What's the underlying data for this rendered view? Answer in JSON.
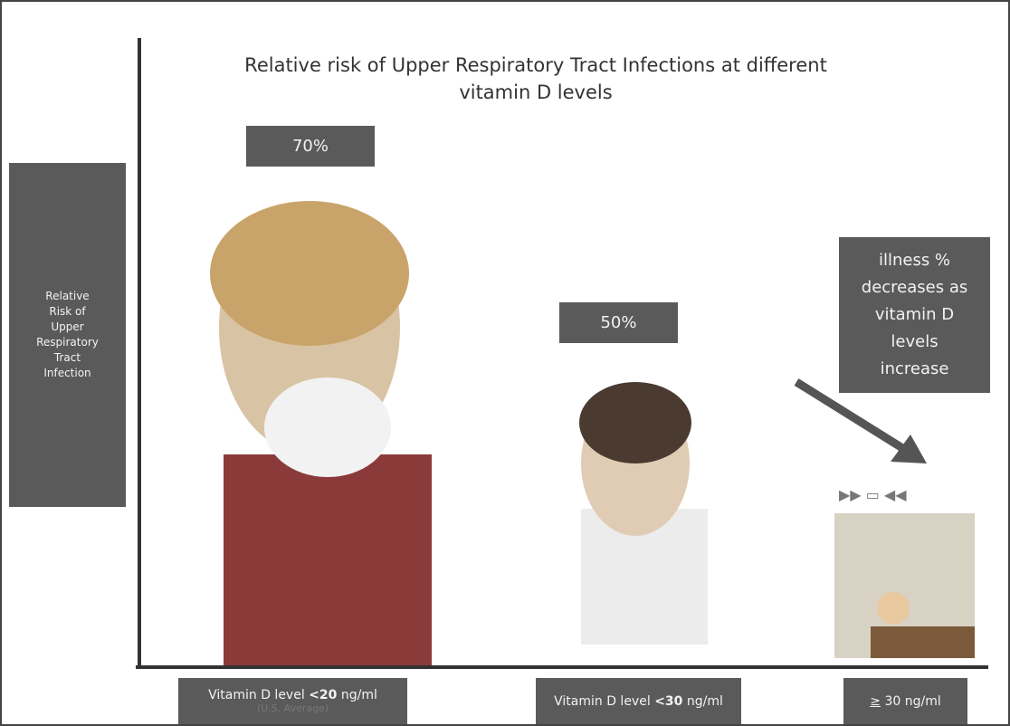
{
  "title": [
    "Relative risk of Upper Respiratory Tract Infections at different",
    "vitamin D levels"
  ],
  "y_label": [
    "Relative",
    "Risk of",
    "Upper",
    "Respiratory",
    "Tract",
    "Infection"
  ],
  "groups": [
    {
      "value_label": "70%",
      "label": [
        "Vitamin D level ",
        "<20",
        " ng/ml"
      ],
      "note": "(U.S. Average)"
    },
    {
      "value_label": "50%",
      "label": [
        "Vitamin D level ",
        "<30",
        " ng/ml"
      ]
    },
    {
      "label": [
        "≥",
        " 30 ng/ml"
      ]
    }
  ],
  "annotation": [
    "illness %",
    "decreases as",
    "vitamin D",
    "levels",
    "increase"
  ]
}
